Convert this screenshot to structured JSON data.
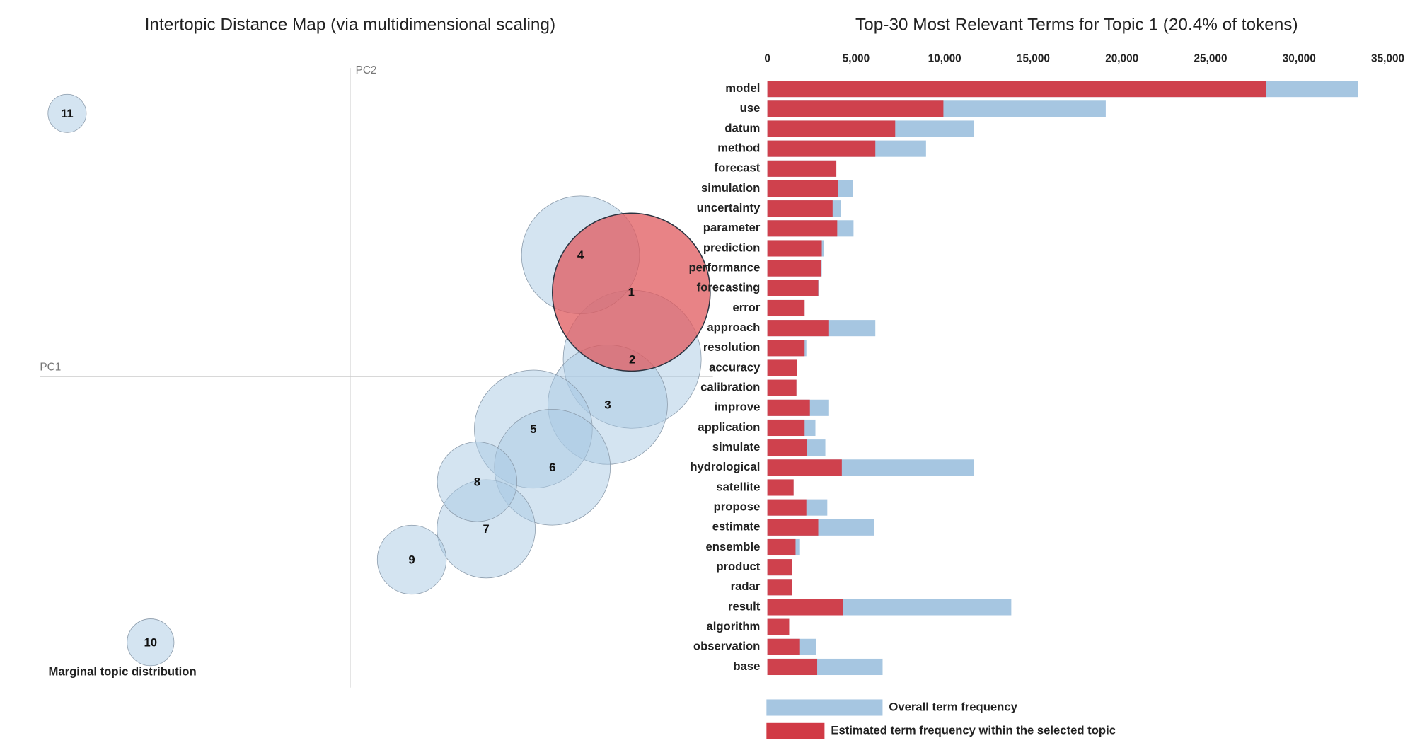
{
  "chart_data": [
    {
      "type": "scatter",
      "title": "Intertopic Distance Map (via multidimensional scaling)",
      "x_label": "PC1",
      "y_label": "PC2",
      "size_label": "Marginal topic distribution",
      "labels": [
        "1",
        "2",
        "3",
        "4",
        "5",
        "6",
        "7",
        "8",
        "9",
        "10",
        "11"
      ],
      "x": [
        3.1,
        3.11,
        2.84,
        2.54,
        2.02,
        2.23,
        1.5,
        1.4,
        0.68,
        -2.2,
        -3.12
      ],
      "y": [
        0.93,
        0.19,
        -0.31,
        1.34,
        -0.58,
        -1.0,
        -1.68,
        -1.16,
        -2.02,
        -2.93,
        2.9
      ],
      "sizes": [
        20.4,
        15.6,
        11.7,
        11.4,
        11.4,
        11.0,
        7.9,
        5.2,
        3.9,
        1.8,
        1.2
      ],
      "colors": [
        "#e05a5e",
        "#a9c9e3",
        "#a9c9e3",
        "#a9c9e3",
        "#a9c9e3",
        "#a9c9e3",
        "#a9c9e3",
        "#a9c9e3",
        "#a9c9e3",
        "#a9c9e3",
        "#a9c9e3"
      ],
      "xlim": [
        -3.42,
        4.0
      ],
      "ylim": [
        -3.43,
        3.4
      ]
    },
    {
      "type": "bar",
      "orientation": "horizontal",
      "title": "Top-30 Most Relevant Terms for Topic 1 (20.4% of tokens)",
      "categories": [
        "model",
        "use",
        "datum",
        "method",
        "forecast",
        "simulation",
        "uncertainty",
        "parameter",
        "prediction",
        "performance",
        "forecasting",
        "error",
        "approach",
        "resolution",
        "accuracy",
        "calibration",
        "improve",
        "application",
        "simulate",
        "hydrological",
        "satellite",
        "propose",
        "estimate",
        "ensemble",
        "product",
        "radar",
        "result",
        "algorithm",
        "observation",
        "base"
      ],
      "series": [
        {
          "name": "Overall term frequency",
          "color": "#a6c6e1",
          "values": [
            33310,
            19090,
            11670,
            8950,
            3890,
            4810,
            4140,
            4860,
            3170,
            3070,
            2920,
            2100,
            6090,
            2200,
            1690,
            1640,
            3480,
            2710,
            3270,
            11670,
            1480,
            3380,
            6040,
            1840,
            1380,
            1380,
            13760,
            1230,
            2760,
            6500
          ]
        },
        {
          "name": "Estimated term frequency within the selected topic",
          "color": "#d13a45",
          "values": [
            28140,
            9930,
            7210,
            6090,
            3890,
            3990,
            3680,
            3940,
            3070,
            3020,
            2870,
            2100,
            3480,
            2100,
            1690,
            1640,
            2400,
            2100,
            2250,
            4200,
            1480,
            2200,
            2870,
            1590,
            1380,
            1380,
            4250,
            1230,
            1840,
            2810
          ]
        }
      ],
      "xlim": [
        0,
        35000
      ],
      "xticks": [
        0,
        {
          "value": 5000,
          "label": "5,000"
        },
        {
          "value": 10000,
          "label": "10,000"
        },
        {
          "value": 15000,
          "label": "15,000"
        },
        {
          "value": 20000,
          "label": "20,000"
        },
        {
          "value": 25000,
          "label": "25,000"
        },
        {
          "value": 30000,
          "label": "30,000"
        },
        {
          "value": 35000,
          "label": "35,000"
        }
      ]
    }
  ]
}
